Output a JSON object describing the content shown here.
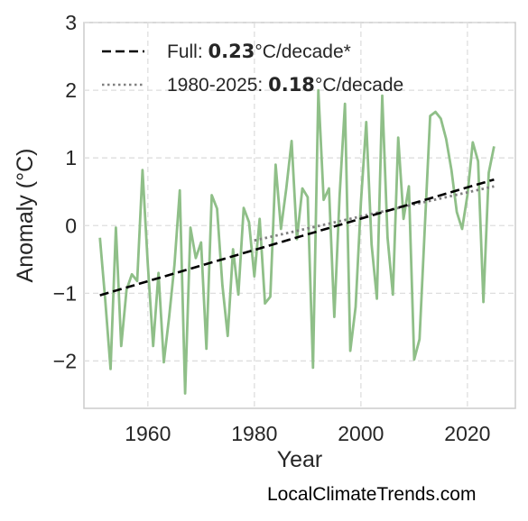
{
  "chart_data": {
    "type": "line",
    "xlabel": "Year",
    "ylabel": "Anomaly (°C)",
    "xlim": [
      1948,
      2029
    ],
    "ylim": [
      -2.7,
      3.0
    ],
    "xticks": [
      "1960",
      "1980",
      "2000",
      "2020"
    ],
    "xtick_values": [
      1960,
      1980,
      2000,
      2020
    ],
    "yticks": [
      "−2",
      "−1",
      "0",
      "1",
      "2",
      "3"
    ],
    "ytick_values": [
      -2,
      -1,
      0,
      1,
      2,
      3
    ],
    "grid": true,
    "legend_placement": "top-left",
    "series": [
      {
        "type": "line",
        "color": "#8fbf88",
        "x": [
          1951,
          1952,
          1953,
          1954,
          1955,
          1956,
          1957,
          1958,
          1959,
          1960,
          1961,
          1962,
          1963,
          1964,
          1965,
          1966,
          1967,
          1968,
          1969,
          1970,
          1971,
          1972,
          1973,
          1974,
          1975,
          1976,
          1977,
          1978,
          1979,
          1980,
          1981,
          1982,
          1983,
          1984,
          1985,
          1986,
          1987,
          1988,
          1989,
          1990,
          1991,
          1992,
          1993,
          1994,
          1995,
          1996,
          1997,
          1998,
          1999,
          2000,
          2001,
          2002,
          2003,
          2004,
          2005,
          2006,
          2007,
          2008,
          2009,
          2010,
          2011,
          2012,
          2013,
          2014,
          2015,
          2016,
          2017,
          2018,
          2019,
          2020,
          2021,
          2022,
          2023,
          2024,
          2025
        ],
        "y": [
          -0.18,
          -1.1,
          -2.12,
          -0.03,
          -1.78,
          -0.95,
          -0.72,
          -0.82,
          0.82,
          -0.58,
          -1.78,
          -0.7,
          -2.02,
          -1.35,
          -0.58,
          0.52,
          -2.48,
          -0.03,
          -0.48,
          -0.25,
          -1.82,
          0.45,
          0.25,
          -0.88,
          -1.63,
          -0.35,
          -1.02,
          0.26,
          0.05,
          -0.75,
          0.1,
          -1.15,
          -1.05,
          0.9,
          -0.05,
          0.55,
          1.25,
          -0.2,
          0.55,
          0.42,
          -2.1,
          2.0,
          0.38,
          0.55,
          -1.35,
          0.45,
          1.8,
          -1.85,
          -1.2,
          0.35,
          1.53,
          -0.28,
          -1.08,
          1.92,
          -0.18,
          -1.02,
          1.3,
          0.1,
          0.58,
          -1.98,
          -1.68,
          -0.02,
          1.62,
          1.68,
          1.58,
          1.28,
          0.82,
          0.2,
          -0.05,
          0.45,
          1.23,
          0.95,
          -1.13,
          0.78,
          1.17
        ]
      },
      {
        "type": "trend",
        "style": "dashed",
        "color": "#000000",
        "name_prefix": "Full: ",
        "name_value": "0.23",
        "name_suffix": "°C/decade*",
        "x": [
          1951,
          2025
        ],
        "y": [
          -1.03,
          0.68
        ]
      },
      {
        "type": "trend",
        "style": "dotted",
        "color": "#808080",
        "name_prefix": "1980-2025: ",
        "name_value": "0.18",
        "name_suffix": "°C/decade",
        "x": [
          1980,
          2025
        ],
        "y": [
          -0.22,
          0.58
        ]
      }
    ]
  },
  "credit": "LocalClimateTrends.com"
}
